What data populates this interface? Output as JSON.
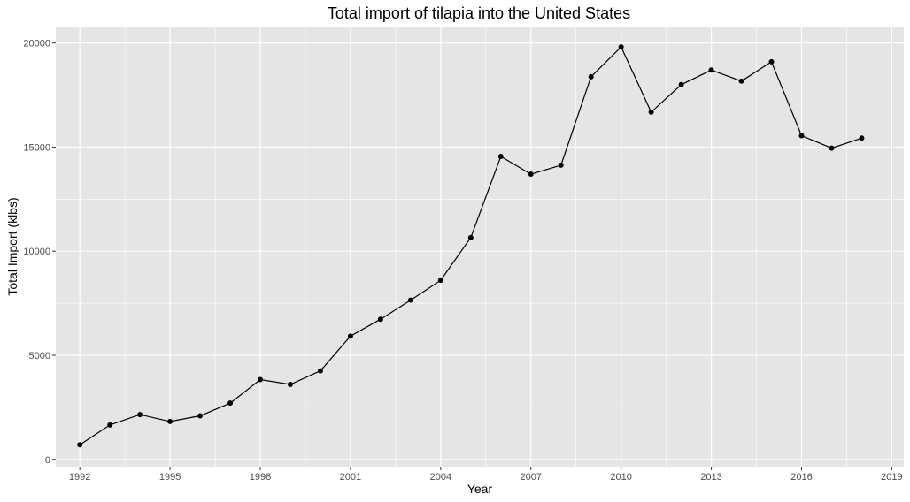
{
  "chart_data": {
    "type": "line",
    "title": "Total import of tilapia into the United States",
    "xlabel": "Year",
    "ylabel": "Total Import (klbs)",
    "x_ticks": [
      1992,
      1995,
      1998,
      2001,
      2004,
      2007,
      2010,
      2013,
      2016,
      2019
    ],
    "y_ticks": [
      0,
      5000,
      10000,
      15000,
      20000
    ],
    "xlim": [
      1991.2,
      2019.4
    ],
    "ylim": [
      -350,
      20750
    ],
    "grid": true,
    "markers": true,
    "colors": {
      "panel": "#e5e5e5",
      "grid": "#ffffff",
      "line": "#000000"
    },
    "series": [
      {
        "x": [
          1992,
          1993,
          1994,
          1995,
          1996,
          1997,
          1998,
          1999,
          2000,
          2001,
          2002,
          2003,
          2004,
          2005,
          2006,
          2007,
          2008,
          2009,
          2010,
          2011,
          2012,
          2013,
          2014,
          2015,
          2016,
          2017,
          2018
        ],
        "values": [
          700,
          1650,
          2150,
          1820,
          2090,
          2700,
          3830,
          3600,
          4250,
          5920,
          6730,
          7650,
          8600,
          10650,
          14550,
          13700,
          14130,
          18380,
          19810,
          16680,
          18000,
          18700,
          18170,
          19100,
          15550,
          14950,
          15430
        ]
      }
    ]
  }
}
